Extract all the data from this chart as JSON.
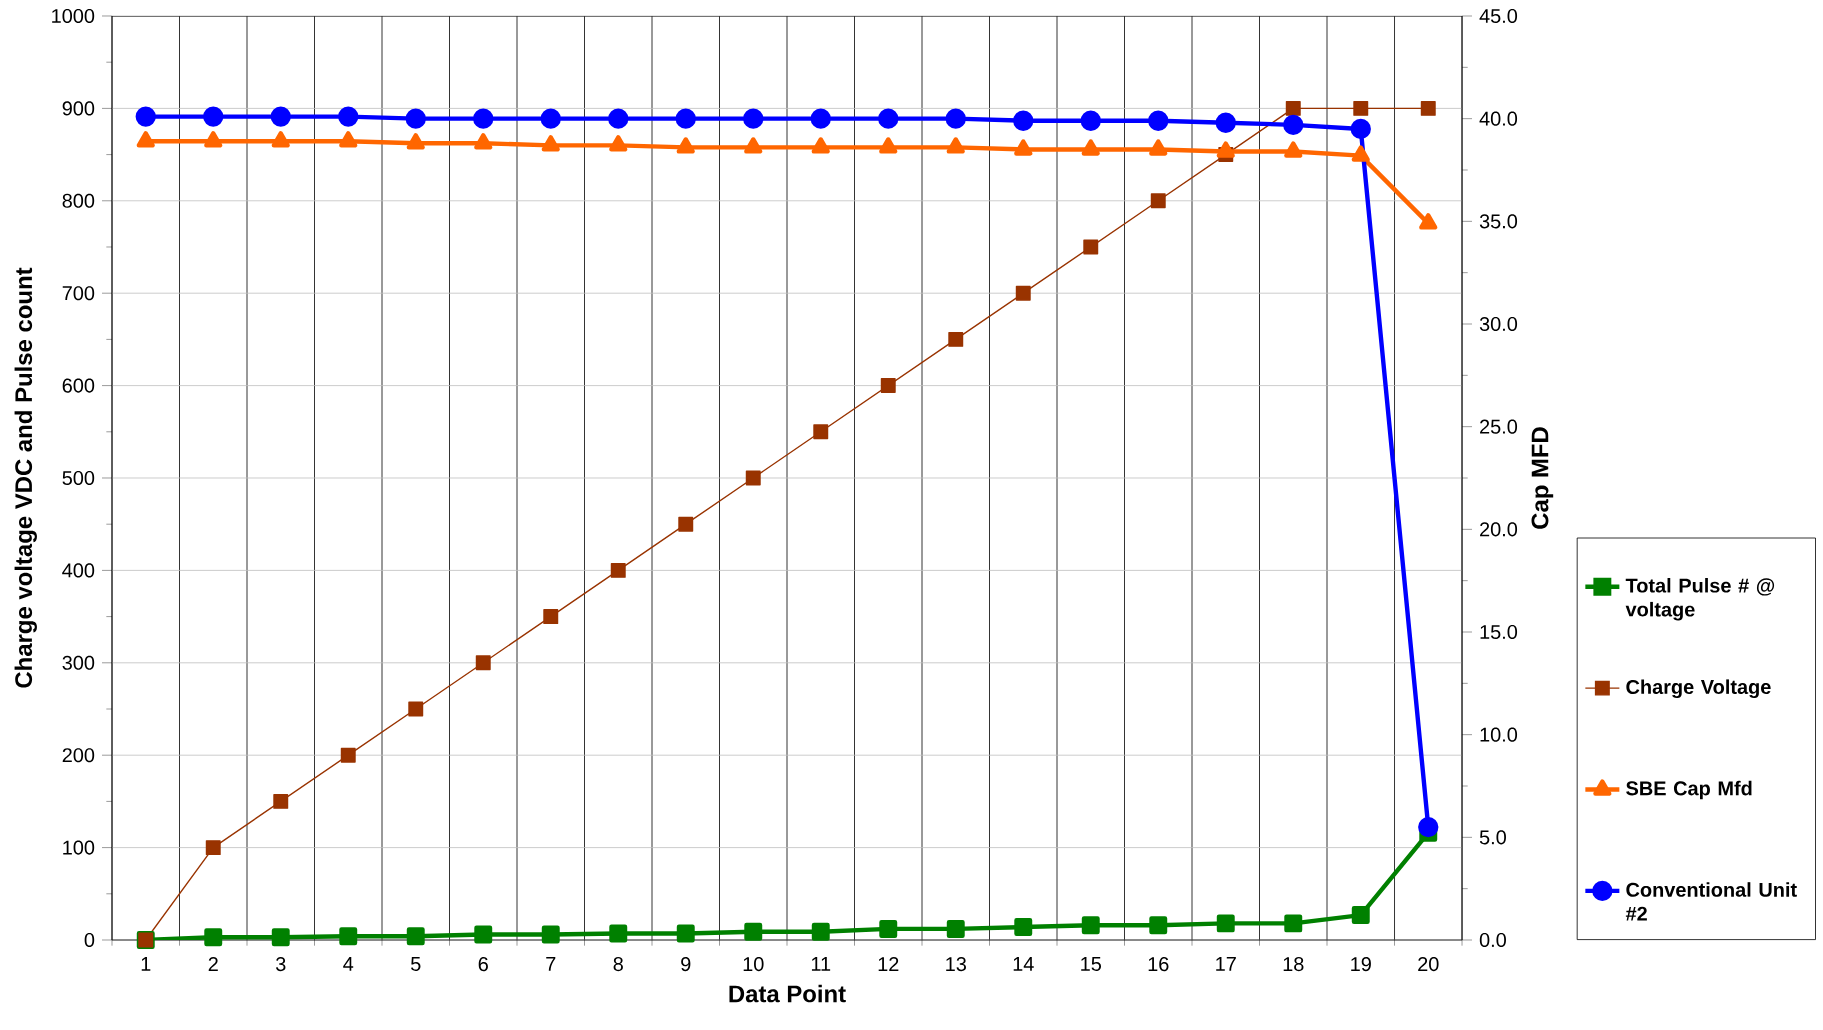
{
  "chart_data": {
    "type": "line",
    "xlabel": "Data Point",
    "ylabel": "Charge voltage VDC and Pulse count",
    "y2label": "Cap MFD",
    "categories": [
      "1",
      "2",
      "3",
      "4",
      "5",
      "6",
      "7",
      "8",
      "9",
      "10",
      "11",
      "12",
      "13",
      "14",
      "15",
      "16",
      "17",
      "18",
      "19",
      "20"
    ],
    "series": [
      {
        "name": "Total Pulse # @ voltage",
        "color": "#008000",
        "marker": "square",
        "values": [
          0,
          3,
          3,
          4,
          4,
          6,
          6,
          7,
          7,
          9,
          9,
          12,
          12,
          14,
          16,
          16,
          18,
          18,
          27,
          116
        ]
      },
      {
        "name": "Charge Voltage",
        "color": "#993300",
        "marker": "square",
        "values": [
          0,
          100,
          150,
          200,
          250,
          300,
          350,
          400,
          450,
          500,
          550,
          600,
          650,
          700,
          750,
          800,
          850,
          900,
          900,
          900
        ]
      },
      {
        "name": "SBE Cap Mfd",
        "color": "#ff6600",
        "marker": "triangle",
        "axis": "y2",
        "values": [
          38.9,
          38.9,
          38.9,
          38.9,
          38.8,
          38.8,
          38.7,
          38.7,
          38.6,
          38.6,
          38.6,
          38.6,
          38.6,
          38.5,
          38.5,
          38.5,
          38.4,
          38.4,
          38.2,
          34.9
        ]
      },
      {
        "name": "Conventional Unit #2",
        "color": "#0000ff",
        "marker": "circle",
        "axis": "y2",
        "values": [
          40.1,
          40.1,
          40.1,
          40.1,
          40.0,
          40.0,
          40.0,
          40.0,
          40.0,
          40.0,
          40.0,
          40.0,
          40.0,
          39.9,
          39.9,
          39.9,
          39.8,
          39.7,
          39.5,
          5.5
        ]
      }
    ],
    "ylim": [
      0,
      1000
    ],
    "yticks": [
      0,
      100,
      200,
      300,
      400,
      500,
      600,
      700,
      800,
      900,
      1000
    ],
    "y2lim": [
      0,
      45
    ],
    "y2ticks": [
      {
        "value": 0,
        "label": "0.0"
      },
      {
        "value": 5,
        "label": "5.0"
      },
      {
        "value": 10,
        "label": "10.0"
      },
      {
        "value": 15,
        "label": "15.0"
      },
      {
        "value": 20,
        "label": "20.0"
      },
      {
        "value": 25,
        "label": "25.0"
      },
      {
        "value": 30,
        "label": "30.0"
      },
      {
        "value": 35,
        "label": "35.0"
      },
      {
        "value": 40,
        "label": "40.0"
      },
      {
        "value": 45,
        "label": "45.0"
      }
    ],
    "grid": true,
    "legend": "right"
  }
}
